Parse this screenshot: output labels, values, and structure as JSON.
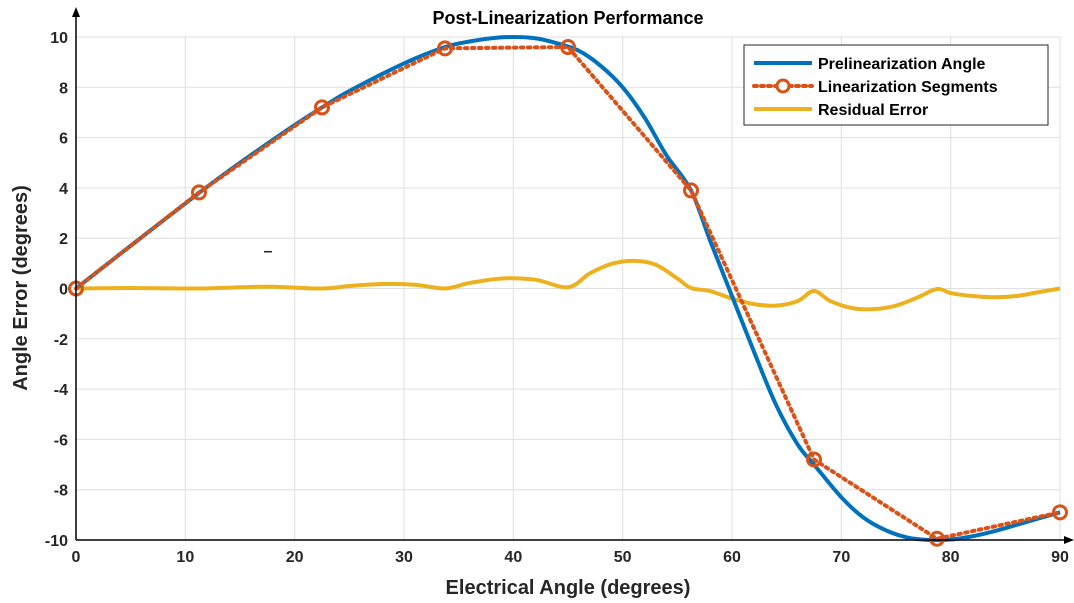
{
  "chart_data": {
    "type": "line",
    "title": "Post-Linearization Performance",
    "xlabel": "Electrical Angle (degrees)",
    "ylabel": "Angle Error (degrees)",
    "xlim": [
      0,
      90
    ],
    "ylim": [
      -10,
      10
    ],
    "xticks": [
      0,
      10,
      20,
      30,
      40,
      50,
      60,
      70,
      80,
      90
    ],
    "yticks": [
      -10,
      -8,
      -6,
      -4,
      -2,
      0,
      2,
      4,
      6,
      8,
      10
    ],
    "grid": true,
    "legend_position": "top-right",
    "stray_mark": "–",
    "series": [
      {
        "name": "Prelinearization Angle",
        "style": "solid",
        "color": "#0072BD",
        "x": [
          0,
          5,
          11.25,
          15,
          20,
          22.5,
          25,
          30,
          33.75,
          36,
          38,
          40,
          42,
          44,
          46,
          48,
          50,
          52,
          54,
          56.25,
          58,
          60,
          62,
          64,
          66,
          67.5,
          70,
          72,
          74,
          76,
          78,
          80,
          82,
          84,
          86,
          88,
          90
        ],
        "y": [
          0,
          1.7,
          3.8,
          5.0,
          6.5,
          7.2,
          7.85,
          8.95,
          9.6,
          9.82,
          9.95,
          10.0,
          9.95,
          9.75,
          9.45,
          8.85,
          8.0,
          6.8,
          5.3,
          3.9,
          1.9,
          -0.3,
          -2.5,
          -4.6,
          -6.2,
          -7.0,
          -8.3,
          -9.1,
          -9.6,
          -9.9,
          -10.0,
          -9.98,
          -9.85,
          -9.65,
          -9.4,
          -9.15,
          -8.9
        ]
      },
      {
        "name": "Linearization Segments",
        "style": "dotted-markers",
        "color": "#D95319",
        "x": [
          0,
          11.25,
          22.5,
          33.75,
          45,
          56.25,
          67.5,
          78.75,
          90
        ],
        "y": [
          0,
          3.82,
          7.2,
          9.55,
          9.6,
          3.9,
          -6.8,
          -9.95,
          -8.9
        ]
      },
      {
        "name": "Residual Error",
        "style": "solid",
        "color": "#EDB120",
        "x": [
          0,
          5,
          11.25,
          15,
          18,
          22.5,
          25,
          28,
          31,
          33.75,
          36,
          39,
          42,
          45,
          47,
          49,
          51,
          53,
          55,
          56.25,
          58,
          60,
          62,
          64,
          66,
          67.5,
          69,
          71,
          73,
          75,
          77,
          78.75,
          80,
          82,
          84,
          86,
          88,
          90
        ],
        "y": [
          0,
          0.02,
          0,
          0.05,
          0.07,
          0,
          0.1,
          0.18,
          0.15,
          0,
          0.22,
          0.4,
          0.35,
          0.05,
          0.6,
          0.98,
          1.1,
          0.95,
          0.4,
          0.02,
          -0.1,
          -0.4,
          -0.62,
          -0.68,
          -0.5,
          -0.1,
          -0.5,
          -0.78,
          -0.82,
          -0.68,
          -0.35,
          -0.02,
          -0.18,
          -0.3,
          -0.35,
          -0.3,
          -0.15,
          0
        ]
      }
    ]
  }
}
